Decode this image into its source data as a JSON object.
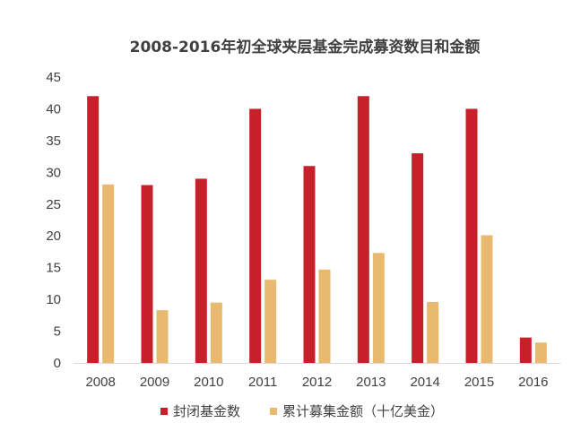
{
  "chart_data": {
    "type": "bar",
    "title": "2008-2016年初全球夹层基金完成募资数目和金额",
    "categories": [
      "2008",
      "2009",
      "2010",
      "2011",
      "2012",
      "2013",
      "2014",
      "2015",
      "2016"
    ],
    "series": [
      {
        "name": "封闭基金数",
        "color": "#C8202A",
        "values": [
          42,
          28,
          29,
          40,
          31,
          42,
          33,
          40,
          4
        ]
      },
      {
        "name": "累计募集金额（十亿美金）",
        "color": "#E8B96E",
        "values": [
          28.1,
          8.3,
          9.5,
          13.1,
          14.7,
          17.3,
          9.6,
          20.1,
          3.2
        ]
      }
    ],
    "ylim": [
      0,
      45
    ],
    "yticks": [
      0,
      5,
      10,
      15,
      20,
      25,
      30,
      35,
      40,
      45
    ],
    "xlabel": "",
    "ylabel": "",
    "grid": false,
    "legend": "bottom"
  }
}
